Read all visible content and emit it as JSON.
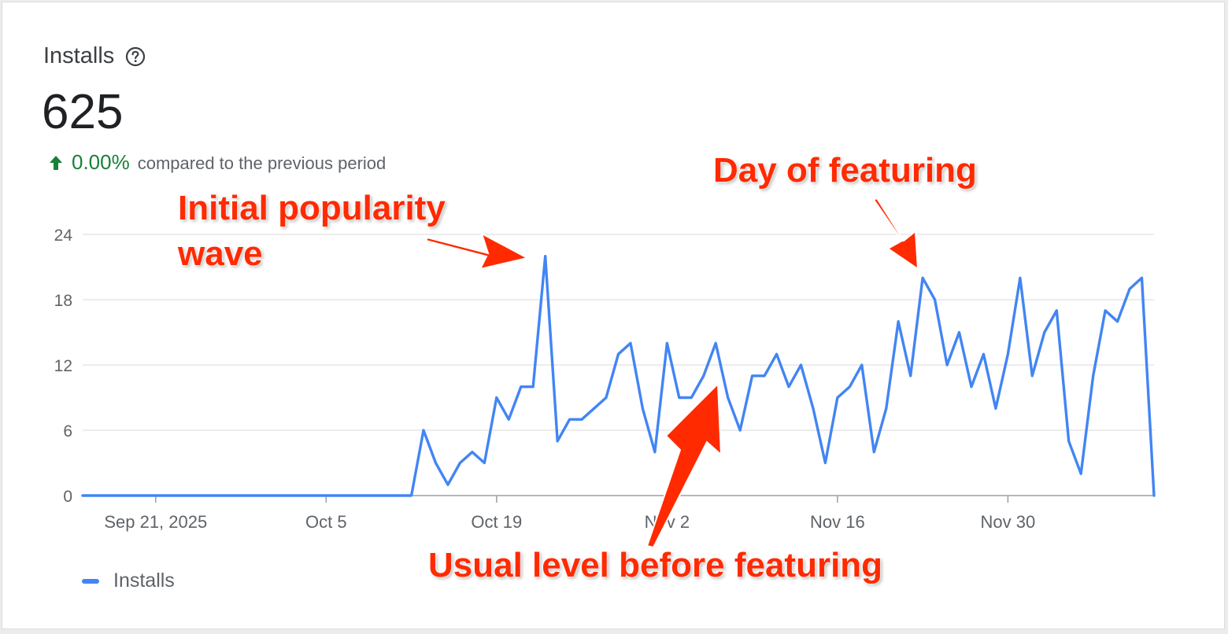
{
  "card": {
    "title": "Installs",
    "total": "625",
    "change_pct": "0.00%",
    "change_text": "compared to the previous period",
    "legend_label": "Installs"
  },
  "colors": {
    "line": "#4285f4",
    "grid": "#e0e0e0",
    "axis": "#9aa0a6",
    "positive": "#188038",
    "annotation": "#ff2a00"
  },
  "icons": {
    "help": "help-circle-icon",
    "change": "arrow-up-icon"
  },
  "annotations": {
    "initial": [
      "Initial popularity",
      "wave"
    ],
    "featuring_day": "Day of featuring",
    "usual_level": "Usual level before featuring"
  },
  "chart_data": {
    "type": "line",
    "series": [
      {
        "name": "Installs",
        "values": [
          0,
          0,
          0,
          0,
          0,
          0,
          0,
          0,
          0,
          0,
          0,
          0,
          0,
          0,
          0,
          0,
          0,
          0,
          0,
          0,
          0,
          0,
          0,
          0,
          0,
          0,
          0,
          0,
          6,
          3,
          1,
          3,
          4,
          3,
          9,
          7,
          10,
          10,
          22,
          5,
          7,
          7,
          8,
          9,
          13,
          14,
          8,
          4,
          14,
          9,
          9,
          11,
          14,
          9,
          6,
          11,
          11,
          13,
          10,
          12,
          8,
          3,
          9,
          10,
          12,
          4,
          8,
          16,
          11,
          20,
          18,
          12,
          15,
          10,
          13,
          8,
          13,
          20,
          11,
          15,
          17,
          5,
          2,
          11,
          17,
          16,
          19,
          20,
          0
        ]
      }
    ],
    "x_start": "Sep 15, 2025",
    "x_interval": "1 day",
    "x_ticks": [
      {
        "index": 6,
        "label": "Sep 21, 2025"
      },
      {
        "index": 20,
        "label": "Oct 5"
      },
      {
        "index": 34,
        "label": "Oct 19"
      },
      {
        "index": 48,
        "label": "Nov 2"
      },
      {
        "index": 62,
        "label": "Nov 16"
      },
      {
        "index": 76,
        "label": "Nov 30"
      }
    ],
    "y_ticks": [
      0,
      6,
      12,
      18,
      24
    ],
    "ylim": [
      0,
      24
    ],
    "grid": true,
    "legend": "bottom-left"
  }
}
